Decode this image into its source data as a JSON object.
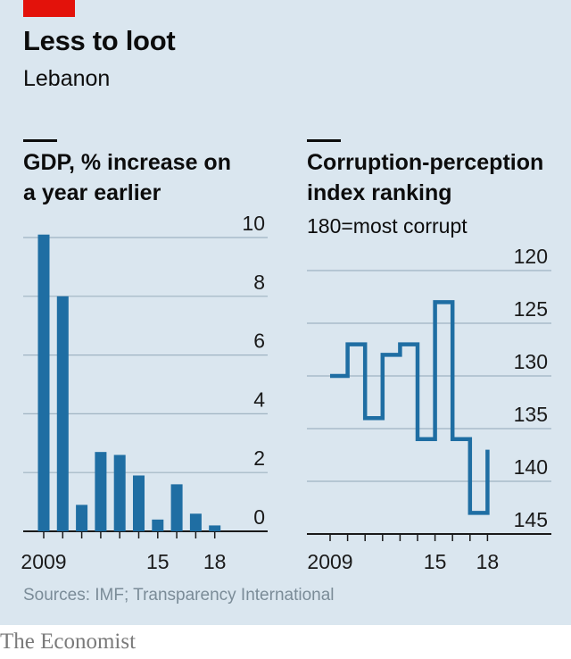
{
  "header": {
    "title": "Less to loot",
    "subtitle": "Lebanon"
  },
  "footer": {
    "source": "Sources: IMF; Transparency International",
    "brand": "The Economist"
  },
  "colors": {
    "background": "#dae6ef",
    "bar": "#1f6ea3",
    "line": "#1f6ea3",
    "accent": "#e3120b"
  },
  "chart_data": [
    {
      "type": "bar",
      "title": "GDP, % increase on a year earlier",
      "title_lines": [
        "GDP, % increase on",
        "a year earlier"
      ],
      "x": [
        2009,
        2010,
        2011,
        2012,
        2013,
        2014,
        2015,
        2016,
        2017,
        2018
      ],
      "values": [
        10.1,
        8.0,
        0.9,
        2.7,
        2.6,
        1.9,
        0.4,
        1.6,
        0.6,
        0.2
      ],
      "ylim": [
        0,
        10
      ],
      "yticks": [
        0,
        2,
        4,
        6,
        8,
        10
      ],
      "xtick_labels": [
        "2009",
        "15",
        "18"
      ],
      "grid": true
    },
    {
      "type": "line",
      "step": true,
      "title": "Corruption-perception index ranking",
      "title_lines": [
        "Corruption-perception",
        "index ranking"
      ],
      "note": "180=most corrupt",
      "x": [
        2009,
        2010,
        2011,
        2012,
        2013,
        2014,
        2015,
        2016,
        2017,
        2018
      ],
      "values": [
        130,
        127,
        134,
        128,
        127,
        136,
        123,
        136,
        143,
        137
      ],
      "ylim": [
        145,
        120
      ],
      "yticks": [
        120,
        125,
        130,
        135,
        140,
        145
      ],
      "inverted_axis": true,
      "xtick_labels": [
        "2009",
        "15",
        "18"
      ],
      "grid": true
    }
  ]
}
